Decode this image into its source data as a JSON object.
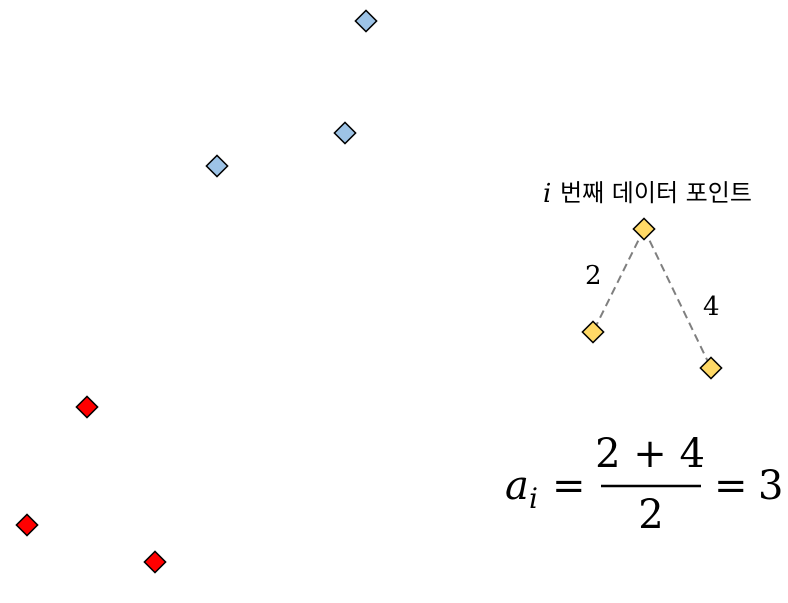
{
  "colors": {
    "blue": "#9dc3e6",
    "red": "#ff0000",
    "yellow": "#ffd966",
    "outline": "#000000",
    "dash": "#7f7f7f"
  },
  "blue_points_count": 3,
  "red_points_count": 3,
  "annotation": {
    "i_symbol": "i",
    "caption": "번째 데이터 포인트",
    "distance_left": "2",
    "distance_right": "4"
  },
  "formula": {
    "a": "a",
    "sub": "i",
    "eq1": "=",
    "numerator": "2 + 4",
    "denominator": "2",
    "eq2": "=",
    "result": "3"
  }
}
